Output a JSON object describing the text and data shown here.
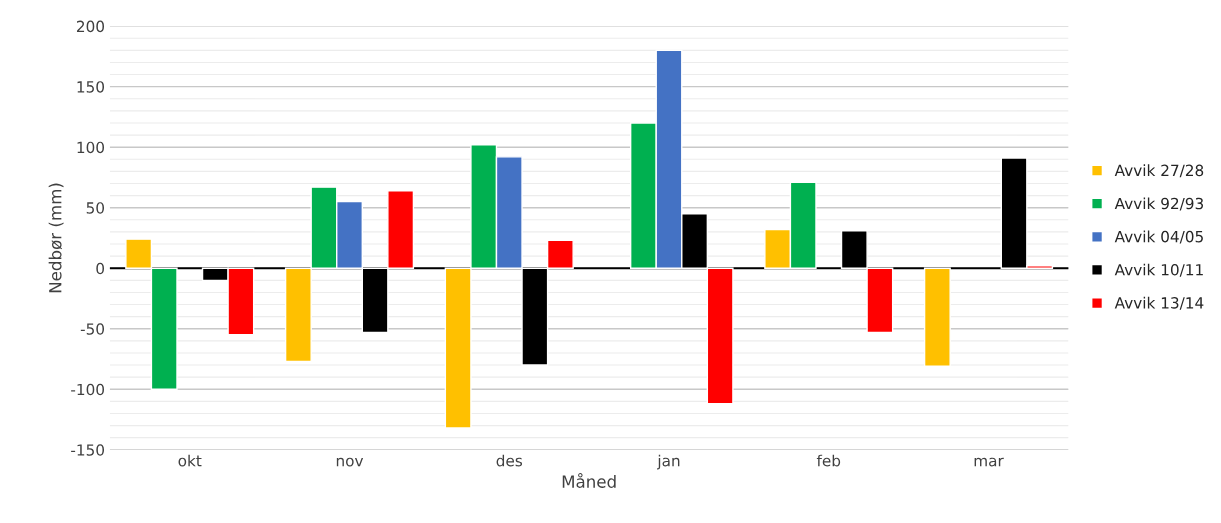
{
  "chart_data": {
    "type": "bar",
    "xlabel": "Måned",
    "ylabel": "Nedbør (mm)",
    "categories": [
      "okt",
      "nov",
      "des",
      "jan",
      "feb",
      "mar"
    ],
    "series": [
      {
        "name": "Avvik 27/28",
        "color": "#ffc000",
        "values": [
          24,
          -77,
          -132,
          null,
          32,
          -81
        ]
      },
      {
        "name": "Avvik 92/93",
        "color": "#00b050",
        "values": [
          -100,
          67,
          102,
          120,
          71,
          null
        ]
      },
      {
        "name": "Avvik 04/05",
        "color": "#4472c4",
        "values": [
          null,
          55,
          92,
          180,
          null,
          null
        ]
      },
      {
        "name": "Avvik 10/11",
        "color": "#000000",
        "values": [
          -10,
          -53,
          -80,
          45,
          31,
          91
        ]
      },
      {
        "name": "Avvik 13/14",
        "color": "#ff0000",
        "values": [
          -55,
          64,
          23,
          -112,
          -53,
          2
        ]
      }
    ],
    "ylim": [
      -150,
      200
    ],
    "yticks": [
      -150,
      -100,
      -50,
      0,
      50,
      100,
      150,
      200
    ],
    "grid": "y",
    "legend": "right"
  }
}
